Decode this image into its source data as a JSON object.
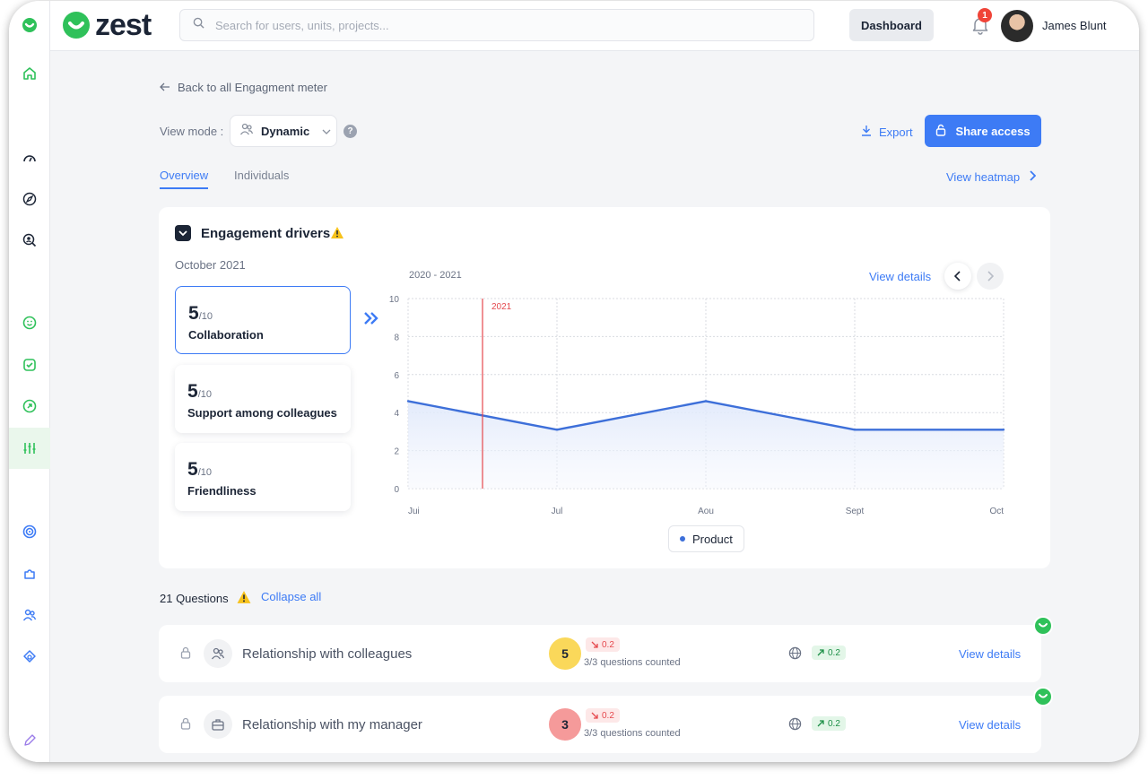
{
  "brand": {
    "name": "zest",
    "color": "#2fc15a"
  },
  "header": {
    "search_placeholder": "Search for users, units, projects...",
    "dashboard_label": "Dashboard",
    "notification_count": "1",
    "user_name": "James Blunt"
  },
  "sidebar": {
    "items": [
      "home-icon",
      "gauge-icon",
      "compass-icon",
      "search-user-icon",
      "smile-icon",
      "checkbox-icon",
      "arrow-circle-icon",
      "sliders-icon",
      "target-icon",
      "puzzle-icon",
      "users-icon",
      "shapes-icon",
      "pen-icon"
    ],
    "active": "sliders-icon"
  },
  "page": {
    "back_label": "Back to all Engagment  meter",
    "view_mode_label": "View mode :",
    "view_mode_value": "Dynamic",
    "help": "?",
    "export_label": "Export",
    "share_label": "Share access",
    "tabs": [
      "Overview",
      "Individuals"
    ],
    "heatmap_label": "View heatmap"
  },
  "card": {
    "title": "Engagement drivers",
    "month": "October 2021",
    "metrics": [
      {
        "score": "5",
        "out": "/10",
        "label": "Collaboration",
        "selected": true
      },
      {
        "score": "5",
        "out": "/10",
        "label": "Support among colleagues",
        "selected": false
      },
      {
        "score": "5",
        "out": "/10",
        "label": "Friendliness",
        "selected": false
      }
    ],
    "range": "2020 - 2021",
    "view_details": "View details",
    "legend": "Product"
  },
  "chart_data": {
    "type": "area",
    "categories": [
      "Jui",
      "Jul",
      "Aou",
      "Sept",
      "Oct"
    ],
    "series": [
      {
        "name": "Product",
        "values": [
          4.6,
          3.1,
          4.6,
          3.1,
          3.1
        ],
        "color": "#3d6fd9"
      }
    ],
    "ylim": [
      0,
      10
    ],
    "yticks": [
      0,
      2,
      4,
      6,
      8,
      10
    ],
    "marker": {
      "label": "2021",
      "x": 0.5,
      "color": "#e5484d"
    },
    "grid": true
  },
  "questions": {
    "count_label": "21 Questions",
    "collapse_label": "Collapse all",
    "rows": [
      {
        "title": "Relationship with colleagues",
        "score": "5",
        "score_color": "#fad85a",
        "delta_down": "0.2",
        "counted": "3/3 questions counted",
        "delta_up": "0.2",
        "view": "View details"
      },
      {
        "title": "Relationship with my manager",
        "score": "3",
        "score_color": "#f59a9a",
        "delta_down": "0.2",
        "counted": "3/3 questions counted",
        "delta_up": "0.2",
        "view": "View details"
      }
    ]
  }
}
